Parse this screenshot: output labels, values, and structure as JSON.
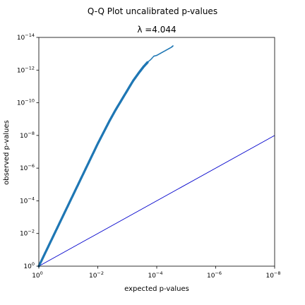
{
  "chart_data": {
    "type": "scatter",
    "title": "Q-Q Plot uncalibrated p-values",
    "subtitle": "λ =4.044",
    "xlabel": "expected p-values",
    "ylabel": "observed p-values",
    "x_scale": "log, reversed (-log10 expected p)",
    "y_scale": "log, reversed (-log10 observed p)",
    "xlim": [
      1,
      1e-08
    ],
    "ylim": [
      1,
      1e-14
    ],
    "x_ticks": [
      {
        "base": "10",
        "exp": "0",
        "value": 1
      },
      {
        "base": "10",
        "exp": "−2",
        "value": 0.01
      },
      {
        "base": "10",
        "exp": "−4",
        "value": 0.0001
      },
      {
        "base": "10",
        "exp": "−6",
        "value": 1e-06
      },
      {
        "base": "10",
        "exp": "−8",
        "value": 1e-08
      }
    ],
    "y_ticks": [
      {
        "base": "10",
        "exp": "0",
        "value": 1
      },
      {
        "base": "10",
        "exp": "−2",
        "value": 0.01
      },
      {
        "base": "10",
        "exp": "−4",
        "value": 0.0001
      },
      {
        "base": "10",
        "exp": "−6",
        "value": 1e-06
      },
      {
        "base": "10",
        "exp": "−8",
        "value": 1e-08
      },
      {
        "base": "10",
        "exp": "−10",
        "value": 1e-10
      },
      {
        "base": "10",
        "exp": "−12",
        "value": 1e-12
      },
      {
        "base": "10",
        "exp": "−14",
        "value": 1e-14
      }
    ],
    "series": [
      {
        "color": "#1f77b4",
        "marker": "dot",
        "points_neglog10": [
          [
            0,
            0
          ],
          [
            0.2,
            0.75
          ],
          [
            0.4,
            1.5
          ],
          [
            0.6,
            2.25
          ],
          [
            0.8,
            3.0
          ],
          [
            1.0,
            3.75
          ],
          [
            1.2,
            4.5
          ],
          [
            1.4,
            5.25
          ],
          [
            1.6,
            6.0
          ],
          [
            1.8,
            6.75
          ],
          [
            2.0,
            7.5
          ],
          [
            2.2,
            8.2
          ],
          [
            2.4,
            8.9
          ],
          [
            2.6,
            9.55
          ],
          [
            2.8,
            10.15
          ],
          [
            3.0,
            10.75
          ],
          [
            3.2,
            11.35
          ],
          [
            3.4,
            11.85
          ],
          [
            3.55,
            12.2
          ],
          [
            3.7,
            12.5
          ],
          [
            3.8,
            12.65
          ],
          [
            3.9,
            12.85
          ],
          [
            4.0,
            12.9
          ],
          [
            4.1,
            13.0
          ],
          [
            4.2,
            13.1
          ],
          [
            4.3,
            13.2
          ],
          [
            4.4,
            13.3
          ],
          [
            4.5,
            13.4
          ],
          [
            4.55,
            13.48
          ]
        ]
      }
    ],
    "reference_line": {
      "color": "#0000cc",
      "from_neglog10": [
        0,
        0
      ],
      "to_neglog10": [
        8,
        8
      ]
    }
  }
}
